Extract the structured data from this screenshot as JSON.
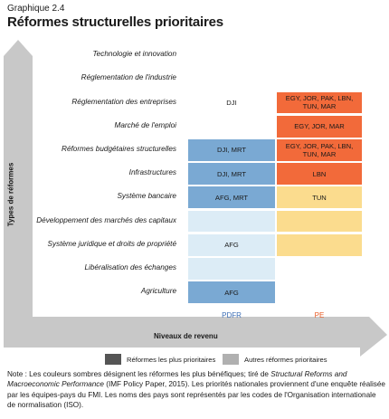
{
  "header": {
    "graph_number": "Graphique 2.4",
    "title": "Réformes structurelles prioritaires"
  },
  "axes": {
    "y_label": "Types de réformes",
    "x_label": "Niveaux de revenu"
  },
  "chart_data": {
    "type": "table",
    "title": "Réformes structurelles prioritaires",
    "xlabel": "Niveaux de revenu",
    "ylabel": "Types de réformes",
    "columns": [
      "PDFR",
      "PE"
    ],
    "rows": [
      {
        "label": "Technologie et innovation",
        "cells": [
          {
            "text": "",
            "shade": "none"
          },
          {
            "text": "",
            "shade": "none"
          }
        ]
      },
      {
        "label": "Réglementation de l'industrie",
        "cells": [
          {
            "text": "",
            "shade": "none"
          },
          {
            "text": "",
            "shade": "none"
          }
        ]
      },
      {
        "label": "Réglementation des entreprises",
        "cells": [
          {
            "text": "DJI",
            "shade": "none"
          },
          {
            "text": "EGY, JOR, PAK, LBN, TUN, MAR",
            "shade": "dark"
          }
        ]
      },
      {
        "label": "Marché de l'emploi",
        "cells": [
          {
            "text": "",
            "shade": "none"
          },
          {
            "text": "EGY, JOR, MAR",
            "shade": "dark"
          }
        ]
      },
      {
        "label": "Réformes budgétaires structurelles",
        "cells": [
          {
            "text": "DJI, MRT",
            "shade": "dark"
          },
          {
            "text": "EGY, JOR, PAK, LBN, TUN, MAR",
            "shade": "dark"
          }
        ]
      },
      {
        "label": "Infrastructures",
        "cells": [
          {
            "text": "DJI, MRT",
            "shade": "dark"
          },
          {
            "text": "LBN",
            "shade": "dark"
          }
        ]
      },
      {
        "label": "Système bancaire",
        "cells": [
          {
            "text": "AFG, MRT",
            "shade": "dark"
          },
          {
            "text": "TUN",
            "shade": "light"
          }
        ]
      },
      {
        "label": "Développement des marchés des capitaux",
        "cells": [
          {
            "text": "",
            "shade": "light"
          },
          {
            "text": "",
            "shade": "light"
          }
        ]
      },
      {
        "label": "Système juridique et droits de propriété",
        "cells": [
          {
            "text": "AFG",
            "shade": "light"
          },
          {
            "text": "",
            "shade": "light"
          }
        ]
      },
      {
        "label": "Libéralisation des échanges",
        "cells": [
          {
            "text": "",
            "shade": "light"
          },
          {
            "text": "",
            "shade": "none"
          }
        ]
      },
      {
        "label": "Agriculture",
        "cells": [
          {
            "text": "AFG",
            "shade": "dark"
          },
          {
            "text": "",
            "shade": "none"
          }
        ]
      }
    ]
  },
  "colors": {
    "pdfr_dark": "#7aa9d3",
    "pdfr_light": "#dcecf6",
    "pe_dark": "#f26a3a",
    "pe_light": "#fbdc8e",
    "pdfr_label": "#3d6fb6",
    "pe_label": "#e85a22",
    "arrow": "#c8c8c8",
    "legend_dark": "#555555",
    "legend_light": "#b0b0b0"
  },
  "legend": [
    {
      "label": "Réformes les plus prioritaires",
      "shade": "dark"
    },
    {
      "label": "Autres réformes prioritaires",
      "shade": "light"
    }
  ],
  "note": {
    "prefix": "Note : Les couleurs sombres désignent les réformes les plus bénéfiques; tiré de ",
    "source_title": "Structural Reforms and Macroeconomic Performance",
    "suffix": " (IMF Policy Paper, 2015). Les priorités nationales proviennent d'une enquête réalisée par les équipes-pays du FMI. Les noms des pays sont représentés par les codes de l'Organisation internationale de normalisation (ISO)."
  }
}
